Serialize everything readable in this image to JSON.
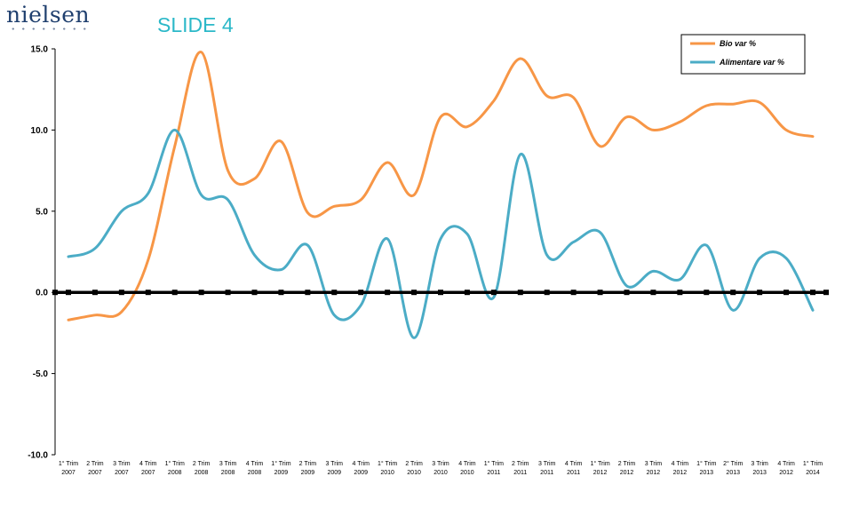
{
  "header": {
    "logo_text": "nielsen",
    "slide_title": "SLIDE 4"
  },
  "chart_data": {
    "type": "line",
    "title": "",
    "xlabel": "",
    "ylabel": "",
    "ylim": [
      -10,
      15
    ],
    "yticks": [
      "15.0",
      "10.0",
      "5.0",
      "0.0",
      "-5.0",
      "-10.0"
    ],
    "grid": false,
    "legend_position": "top-right",
    "categories": [
      [
        "1° Trim",
        "2007"
      ],
      [
        "2 Trim",
        "2007"
      ],
      [
        "3 Trim",
        "2007"
      ],
      [
        "4 Trim",
        "2007"
      ],
      [
        "1° Trim",
        "2008"
      ],
      [
        "2 Trim",
        "2008"
      ],
      [
        "3 Trim",
        "2008"
      ],
      [
        "4 Trim",
        "2008"
      ],
      [
        "1° Trim",
        "2009"
      ],
      [
        "2 Trim",
        "2009"
      ],
      [
        "3 Trim",
        "2009"
      ],
      [
        "4 Trim",
        "2009"
      ],
      [
        "1° Trim",
        "2010"
      ],
      [
        "2 Trim",
        "2010"
      ],
      [
        "3 Trim",
        "2010"
      ],
      [
        "4 Trim",
        "2010"
      ],
      [
        "1° Trim",
        "2011"
      ],
      [
        "2 Trim",
        "2011"
      ],
      [
        "3 Trim",
        "2011"
      ],
      [
        "4 Trim",
        "2011"
      ],
      [
        "1° Trim",
        "2012"
      ],
      [
        "2 Trim",
        "2012"
      ],
      [
        "3 Trim",
        "2012"
      ],
      [
        "4 Trim",
        "2012"
      ],
      [
        "1° Trim",
        "2013"
      ],
      [
        "2° Trim",
        "2013"
      ],
      [
        "3 Trim",
        "2013"
      ],
      [
        "4 Trim",
        "2012"
      ],
      [
        "1° Trim",
        "2014"
      ]
    ],
    "series": [
      {
        "name": "Bio var %",
        "color": "#f79646",
        "values": [
          -1.7,
          -1.4,
          -1.2,
          2.0,
          9.0,
          14.8,
          7.5,
          7.0,
          9.3,
          4.9,
          5.3,
          5.7,
          8.0,
          6.0,
          10.8,
          10.2,
          11.8,
          14.4,
          12.1,
          12.0,
          9.0,
          10.8,
          10.0,
          10.5,
          11.5,
          11.6,
          11.7,
          10.0,
          9.6
        ]
      },
      {
        "name": "Alimentare var %",
        "color": "#4bacc6",
        "values": [
          2.2,
          2.7,
          5.0,
          6.1,
          10.0,
          6.0,
          5.7,
          2.3,
          1.4,
          2.9,
          -1.4,
          -0.8,
          3.3,
          -2.8,
          3.3,
          3.6,
          -0.3,
          8.5,
          2.3,
          3.1,
          3.7,
          0.4,
          1.3,
          0.8,
          2.9,
          -1.1,
          2.1,
          2.1,
          -1.1
        ]
      }
    ]
  }
}
